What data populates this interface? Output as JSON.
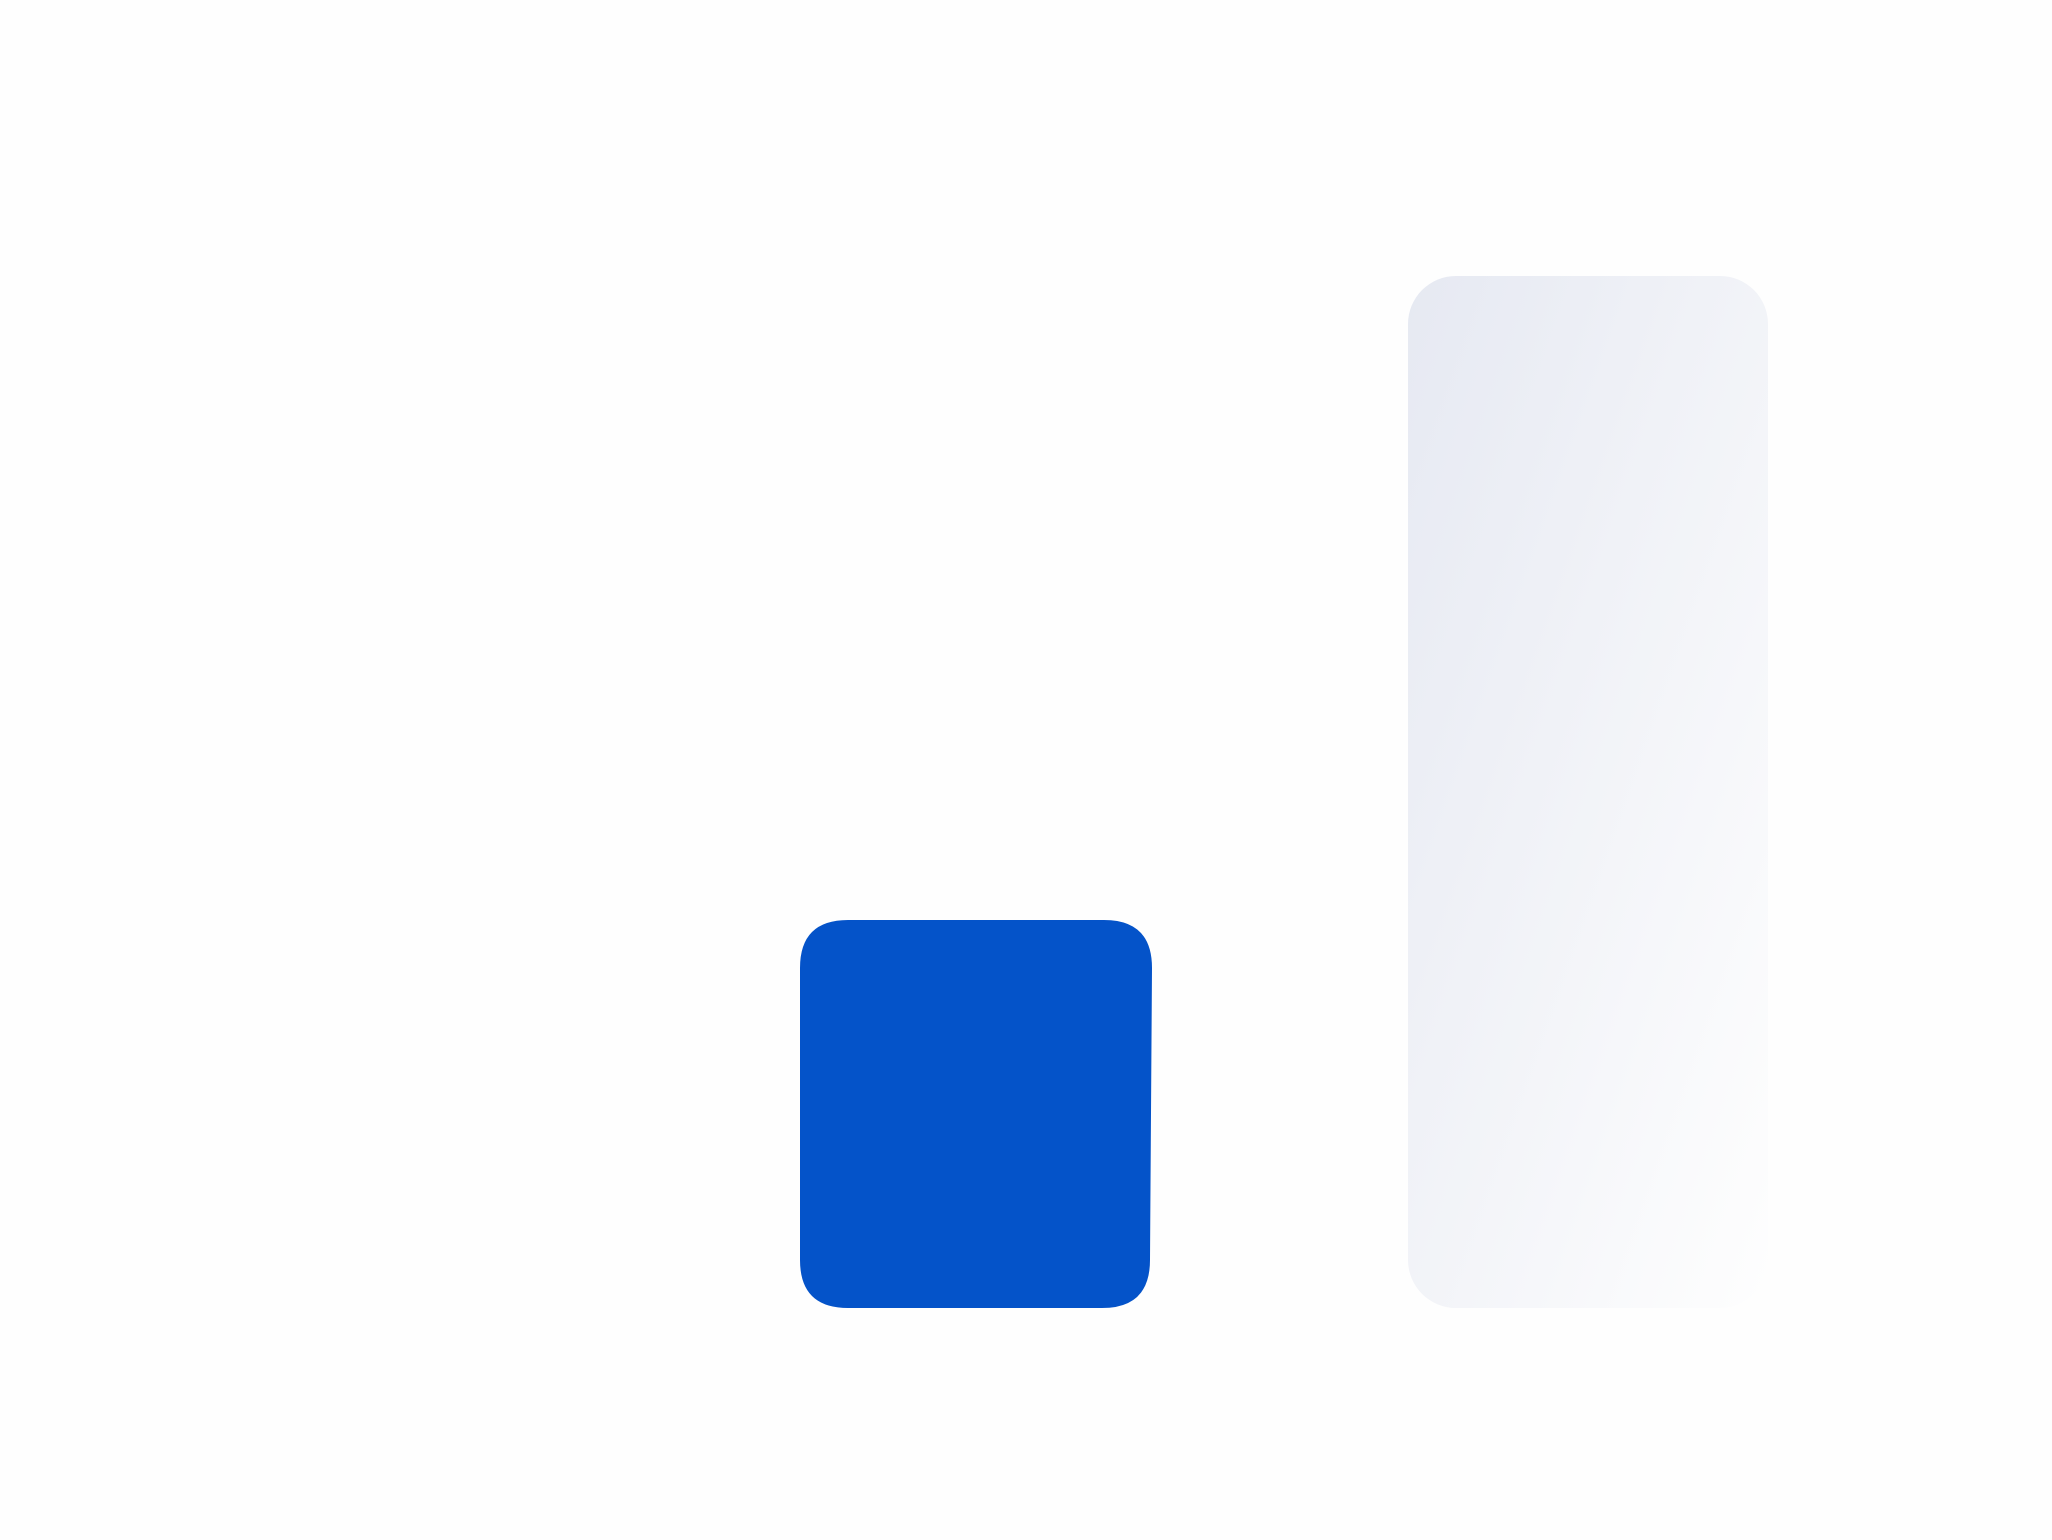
{
  "illustration": {
    "shapes": [
      {
        "name": "blue-bar",
        "fill": "#0453C9"
      },
      {
        "name": "light-bar",
        "gradient_from": "#E6E9F2",
        "gradient_to": "#FEFEFE"
      }
    ]
  },
  "colors": {
    "background": "#FEFEFE",
    "accent_blue": "#0453C9",
    "muted_gradient_start": "#E6E9F2",
    "muted_gradient_end": "#FEFEFE"
  }
}
